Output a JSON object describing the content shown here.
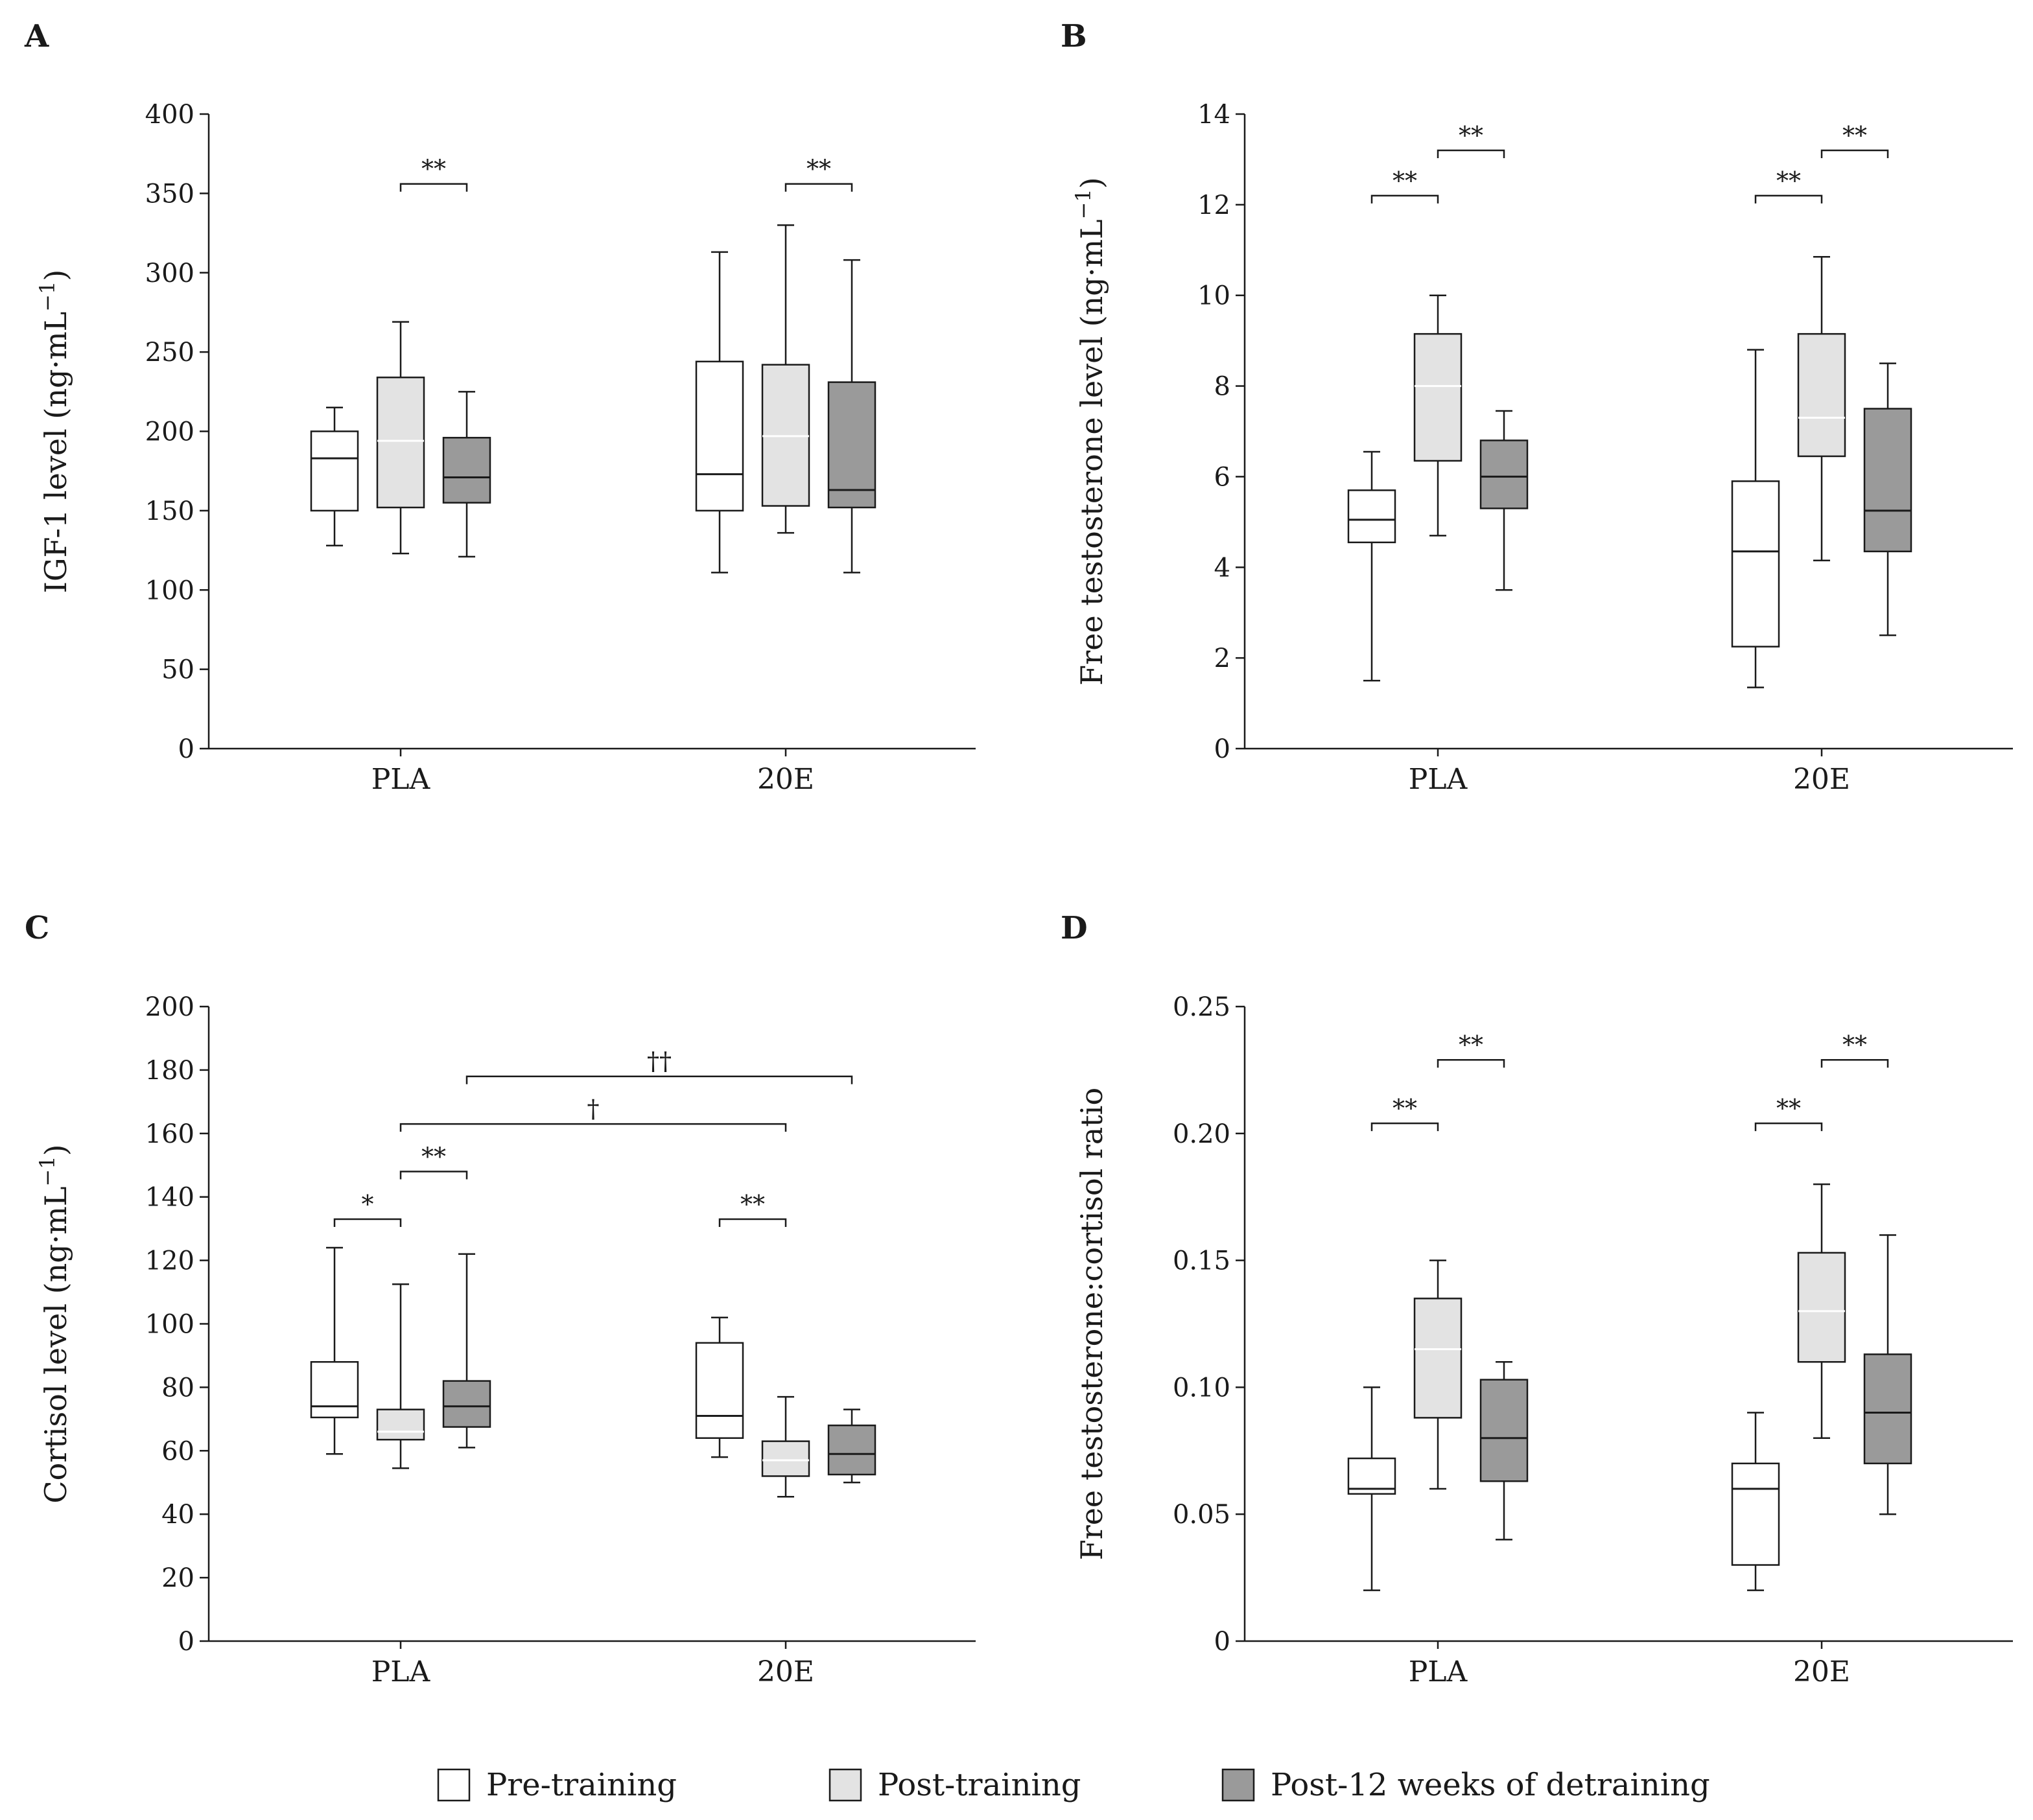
{
  "colors": {
    "pre": "#ffffff",
    "post": "#e3e3e3",
    "detrain": "#9a9a9a",
    "line": "#1a1a1a"
  },
  "legend": [
    {
      "key": "pre",
      "label": "Pre-training"
    },
    {
      "key": "post",
      "label": "Post-training"
    },
    {
      "key": "detrain",
      "label": "Post-12 weeks of detraining"
    }
  ],
  "chart_data": [
    {
      "type": "box",
      "panel": "A",
      "ylabel": "IGF-1 level (ng·mL",
      "ylabel_sup": "−1",
      "ylabel_end": ")",
      "ylim": [
        0,
        400
      ],
      "yticks": [
        0,
        50,
        100,
        150,
        200,
        250,
        300,
        350,
        400
      ],
      "tick_decimals": 0,
      "categories": [
        "PLA",
        "20E"
      ],
      "series": [
        {
          "key": "pre",
          "boxes": [
            {
              "min": 128,
              "q1": 150,
              "median": 183,
              "q3": 200,
              "max": 215
            },
            {
              "min": 111,
              "q1": 150,
              "median": 173,
              "q3": 244,
              "max": 313
            }
          ]
        },
        {
          "key": "post",
          "boxes": [
            {
              "min": 123,
              "q1": 152,
              "median": 194,
              "q3": 234,
              "max": 269
            },
            {
              "min": 136,
              "q1": 153,
              "median": 197,
              "q3": 242,
              "max": 330
            }
          ]
        },
        {
          "key": "detrain",
          "boxes": [
            {
              "min": 121,
              "q1": 155,
              "median": 171,
              "q3": 196,
              "max": 225
            },
            {
              "min": 111,
              "q1": 152,
              "median": 163,
              "q3": 231,
              "max": 308
            }
          ]
        }
      ],
      "annotations": [
        {
          "label": "**",
          "cat_from": 0,
          "series_from": 1,
          "cat_to": 0,
          "series_to": 2,
          "y": 356
        },
        {
          "label": "**",
          "cat_from": 1,
          "series_from": 1,
          "cat_to": 1,
          "series_to": 2,
          "y": 356
        }
      ]
    },
    {
      "type": "box",
      "panel": "B",
      "ylabel": "Free testosterone level (ng·mL",
      "ylabel_sup": "−1",
      "ylabel_end": ")",
      "ylim": [
        0,
        14
      ],
      "yticks": [
        0,
        2,
        4,
        6,
        8,
        10,
        12,
        14
      ],
      "tick_decimals": 0,
      "categories": [
        "PLA",
        "20E"
      ],
      "series": [
        {
          "key": "pre",
          "boxes": [
            {
              "min": 1.5,
              "q1": 4.55,
              "median": 5.05,
              "q3": 5.7,
              "max": 6.55
            },
            {
              "min": 1.35,
              "q1": 2.25,
              "median": 4.35,
              "q3": 5.9,
              "max": 8.8
            }
          ]
        },
        {
          "key": "post",
          "boxes": [
            {
              "min": 4.7,
              "q1": 6.35,
              "median": 8.0,
              "q3": 9.15,
              "max": 10.0
            },
            {
              "min": 4.15,
              "q1": 6.45,
              "median": 7.3,
              "q3": 9.15,
              "max": 10.85
            }
          ]
        },
        {
          "key": "detrain",
          "boxes": [
            {
              "min": 3.5,
              "q1": 5.3,
              "median": 6.0,
              "q3": 6.8,
              "max": 7.45
            },
            {
              "min": 2.5,
              "q1": 4.35,
              "median": 5.25,
              "q3": 7.5,
              "max": 8.5
            }
          ]
        }
      ],
      "annotations": [
        {
          "label": "**",
          "cat_from": 0,
          "series_from": 0,
          "cat_to": 0,
          "series_to": 1,
          "y": 12.2
        },
        {
          "label": "**",
          "cat_from": 0,
          "series_from": 1,
          "cat_to": 0,
          "series_to": 2,
          "y": 13.2
        },
        {
          "label": "**",
          "cat_from": 1,
          "series_from": 0,
          "cat_to": 1,
          "series_to": 1,
          "y": 12.2
        },
        {
          "label": "**",
          "cat_from": 1,
          "series_from": 1,
          "cat_to": 1,
          "series_to": 2,
          "y": 13.2
        }
      ]
    },
    {
      "type": "box",
      "panel": "C",
      "ylabel": "Cortisol level (ng·mL",
      "ylabel_sup": "−1",
      "ylabel_end": ")",
      "ylim": [
        0,
        200
      ],
      "yticks": [
        0,
        20,
        40,
        60,
        80,
        100,
        120,
        140,
        160,
        180,
        200
      ],
      "tick_decimals": 0,
      "categories": [
        "PLA",
        "20E"
      ],
      "series": [
        {
          "key": "pre",
          "boxes": [
            {
              "min": 59,
              "q1": 70.5,
              "median": 74,
              "q3": 88,
              "max": 124
            },
            {
              "min": 58,
              "q1": 64,
              "median": 71,
              "q3": 94,
              "max": 102
            }
          ]
        },
        {
          "key": "post",
          "boxes": [
            {
              "min": 54.5,
              "q1": 63.5,
              "median": 66,
              "q3": 73,
              "max": 112.5
            },
            {
              "min": 45.5,
              "q1": 52,
              "median": 57,
              "q3": 63,
              "max": 77
            }
          ]
        },
        {
          "key": "detrain",
          "boxes": [
            {
              "min": 61,
              "q1": 67.5,
              "median": 74,
              "q3": 82,
              "max": 122
            },
            {
              "min": 50,
              "q1": 52.5,
              "median": 59,
              "q3": 68,
              "max": 73
            }
          ]
        }
      ],
      "annotations": [
        {
          "label": "*",
          "cat_from": 0,
          "series_from": 0,
          "cat_to": 0,
          "series_to": 1,
          "y": 133
        },
        {
          "label": "**",
          "cat_from": 0,
          "series_from": 1,
          "cat_to": 0,
          "series_to": 2,
          "y": 148
        },
        {
          "label": "†",
          "cat_from": 0,
          "series_from": 1,
          "cat_to": 1,
          "series_to": 1,
          "y": 163
        },
        {
          "label": "††",
          "cat_from": 0,
          "series_from": 2,
          "cat_to": 1,
          "series_to": 2,
          "y": 178
        },
        {
          "label": "**",
          "cat_from": 1,
          "series_from": 0,
          "cat_to": 1,
          "series_to": 1,
          "y": 133
        }
      ]
    },
    {
      "type": "box",
      "panel": "D",
      "ylabel": "Free testosterone:cortisol ratio",
      "ylabel_sup": "",
      "ylabel_end": "",
      "ylim": [
        0,
        0.25
      ],
      "yticks": [
        0,
        0.05,
        0.1,
        0.15,
        0.2,
        0.25
      ],
      "tick_decimals": 2,
      "categories": [
        "PLA",
        "20E"
      ],
      "series": [
        {
          "key": "pre",
          "boxes": [
            {
              "min": 0.02,
              "q1": 0.058,
              "median": 0.06,
              "q3": 0.072,
              "max": 0.1
            },
            {
              "min": 0.02,
              "q1": 0.03,
              "median": 0.06,
              "q3": 0.07,
              "max": 0.09
            }
          ]
        },
        {
          "key": "post",
          "boxes": [
            {
              "min": 0.06,
              "q1": 0.088,
              "median": 0.115,
              "q3": 0.135,
              "max": 0.15
            },
            {
              "min": 0.08,
              "q1": 0.11,
              "median": 0.13,
              "q3": 0.153,
              "max": 0.18
            }
          ]
        },
        {
          "key": "detrain",
          "boxes": [
            {
              "min": 0.04,
              "q1": 0.063,
              "median": 0.08,
              "q3": 0.103,
              "max": 0.11
            },
            {
              "min": 0.05,
              "q1": 0.07,
              "median": 0.09,
              "q3": 0.113,
              "max": 0.16
            }
          ]
        }
      ],
      "annotations": [
        {
          "label": "**",
          "cat_from": 0,
          "series_from": 0,
          "cat_to": 0,
          "series_to": 1,
          "y": 0.204
        },
        {
          "label": "**",
          "cat_from": 0,
          "series_from": 1,
          "cat_to": 0,
          "series_to": 2,
          "y": 0.229
        },
        {
          "label": "**",
          "cat_from": 1,
          "series_from": 0,
          "cat_to": 1,
          "series_to": 1,
          "y": 0.204
        },
        {
          "label": "**",
          "cat_from": 1,
          "series_from": 1,
          "cat_to": 1,
          "series_to": 2,
          "y": 0.229
        }
      ]
    }
  ]
}
